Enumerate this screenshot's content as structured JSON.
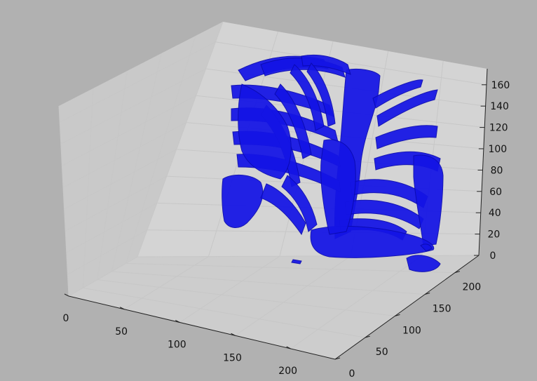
{
  "chart_data": {
    "type": "3d-surface",
    "title": "",
    "xlabel": "",
    "ylabel": "",
    "zlabel": "",
    "x_ticks": [
      "0",
      "50",
      "100",
      "150",
      "200"
    ],
    "y_ticks": [
      "0",
      "50",
      "100",
      "150",
      "200"
    ],
    "z_ticks": [
      "0",
      "20",
      "40",
      "60",
      "80",
      "100",
      "120",
      "140",
      "160"
    ],
    "xlim": [
      0,
      240
    ],
    "ylim": [
      0,
      240
    ],
    "zlim": [
      0,
      175
    ],
    "grid": true,
    "surface_color": "#1414e6",
    "pane_color": "#cfcfcf",
    "figure_background": "#b1b1b1"
  }
}
